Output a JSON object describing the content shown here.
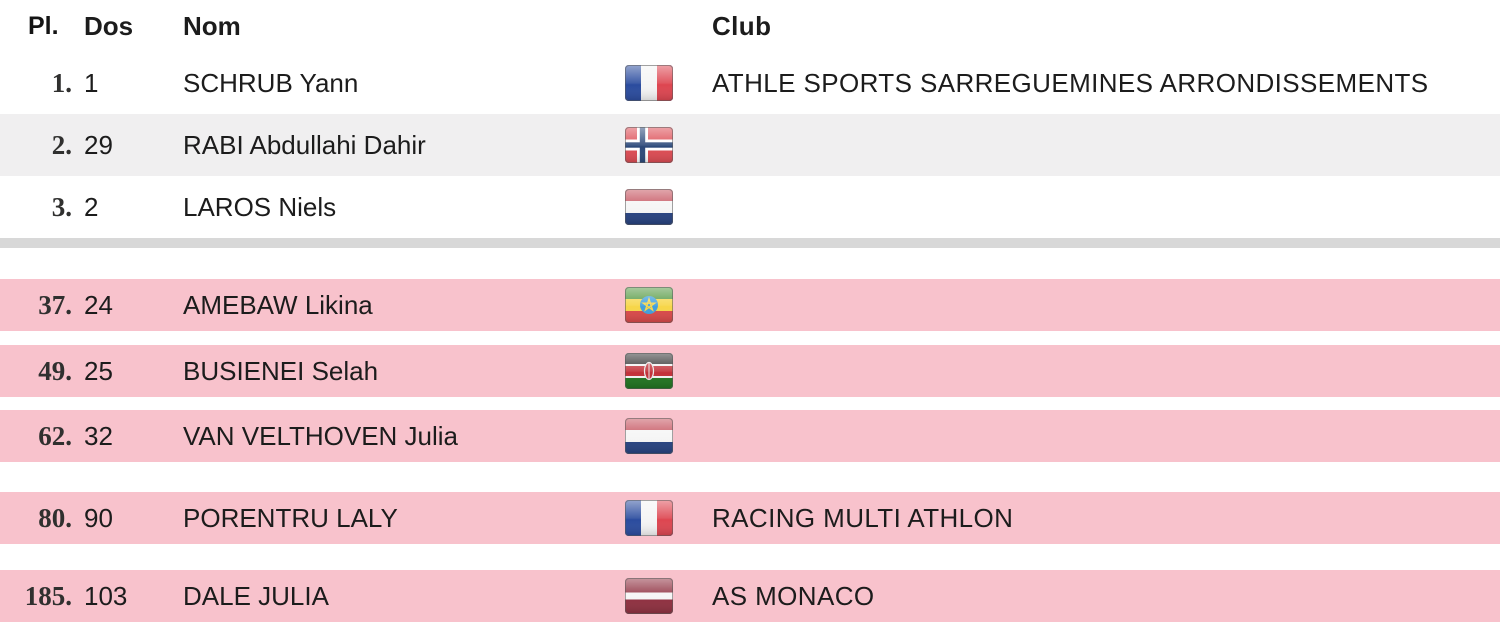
{
  "table": {
    "headers": {
      "place": "Pl.",
      "bib": "Dos",
      "name": "Nom",
      "club": "Club"
    },
    "rows": [
      {
        "place": "1.",
        "bib": "1",
        "name": "SCHRUB Yann",
        "flag": "france",
        "club": "ATHLE SPORTS SARREGUEMINES ARRONDISSEMENTS",
        "section": "top",
        "variant": "white"
      },
      {
        "place": "2.",
        "bib": "29",
        "name": "RABI Abdullahi Dahir",
        "flag": "norway",
        "club": "",
        "section": "top",
        "variant": "alt"
      },
      {
        "place": "3.",
        "bib": "2",
        "name": "LAROS Niels",
        "flag": "netherlands",
        "club": "",
        "section": "top",
        "variant": "white"
      },
      {
        "place": "37.",
        "bib": "24",
        "name": "AMEBAW Likina",
        "flag": "ethiopia",
        "club": "",
        "section": "bottom",
        "variant": "pink"
      },
      {
        "place": "49.",
        "bib": "25",
        "name": "BUSIENEI Selah",
        "flag": "kenya",
        "club": "",
        "section": "bottom",
        "variant": "pink"
      },
      {
        "place": "62.",
        "bib": "32",
        "name": "VAN VELTHOVEN Julia",
        "flag": "netherlands",
        "club": "",
        "section": "bottom",
        "variant": "pink"
      },
      {
        "place": "80.",
        "bib": "90",
        "name": "PORENTRU LALY",
        "flag": "france",
        "club": "RACING MULTI ATHLON",
        "section": "bottom",
        "variant": "pink"
      },
      {
        "place": "185.",
        "bib": "103",
        "name": "DALE JULIA",
        "flag": "latvia",
        "club": "AS MONACO",
        "section": "bottom",
        "variant": "pink"
      }
    ],
    "colors": {
      "highlight_pink": "#f8c2cc",
      "alt_row_gray": "#f0eff0",
      "separator_gray": "#d8d8d8",
      "text": "#1c1c1c"
    }
  }
}
